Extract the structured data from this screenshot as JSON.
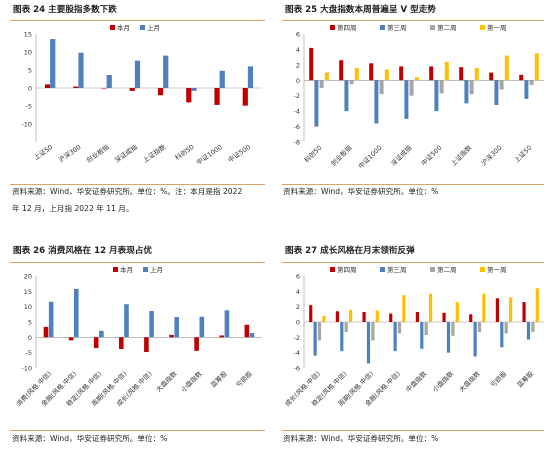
{
  "colors": {
    "red": "#c00000",
    "blue": "#4f81bd",
    "gray": "#a6a6a6",
    "yellow": "#ffc000",
    "rule": "#d9a46b"
  },
  "fig24": {
    "title": "图表 24 主要股指多数下跌",
    "source_line1": "资料来源：Wind，华安证券研究所。单位：%。注：本月是指 2022",
    "source_line2": "年 12 月，上月指 2022 年 11 月。"
  },
  "fig25": {
    "title": "图表 25 大盘指数本周普遍呈 V 型走势",
    "source": "资料来源：Wind，华安证券研究所。单位：%"
  },
  "fig26": {
    "title": "图表 26 消费风格在 12 月表现占优",
    "source": "资料来源：Wind，华安证券研究所。单位：%"
  },
  "fig27": {
    "title": "图表 27 成长风格在月末领衔反弹",
    "source": "资料来源：Wind，华安证券研究所。单位：%"
  },
  "chart_data": [
    {
      "id": "fig24",
      "type": "bar",
      "categories": [
        "上证50",
        "沪深300",
        "创业板指",
        "深证成指",
        "上证指数",
        "科创50",
        "中证1000",
        "中证500"
      ],
      "series": [
        {
          "name": "本月",
          "color": "#c00000",
          "values": [
            1.0,
            0.4,
            0.0,
            -0.8,
            -2.0,
            -4.0,
            -4.7,
            -4.9
          ]
        },
        {
          "name": "上月",
          "color": "#4f81bd",
          "values": [
            13.6,
            9.8,
            3.6,
            7.6,
            9.0,
            -0.8,
            4.8,
            6.0
          ]
        }
      ],
      "yticks": [
        -10,
        -5,
        0,
        5,
        10,
        15
      ],
      "ylim": [
        -15,
        15
      ],
      "legend": "top"
    },
    {
      "id": "fig25",
      "type": "bar",
      "categories": [
        "科创50",
        "创业板指",
        "中证1000",
        "深证成指",
        "中证500",
        "上证指数",
        "沪深300",
        "上证50"
      ],
      "series": [
        {
          "name": "第四周",
          "color": "#c00000",
          "values": [
            4.2,
            2.6,
            2.2,
            1.8,
            1.8,
            1.7,
            1.0,
            0.7
          ]
        },
        {
          "name": "第三周",
          "color": "#4f81bd",
          "values": [
            -6.0,
            -4.0,
            -5.6,
            -5.0,
            -4.0,
            -3.0,
            -3.2,
            -2.4
          ]
        },
        {
          "name": "第二周",
          "color": "#a6a6a6",
          "values": [
            -1.0,
            -0.5,
            -1.8,
            -2.0,
            -1.7,
            -1.8,
            -1.2,
            -0.6
          ]
        },
        {
          "name": "第一周",
          "color": "#ffc000",
          "values": [
            1.0,
            1.6,
            1.4,
            0.4,
            2.4,
            1.6,
            3.2,
            3.5
          ]
        }
      ],
      "yticks": [
        -8,
        -6,
        -4,
        -2,
        0,
        2,
        4,
        6
      ],
      "ylim": [
        -8,
        6
      ],
      "legend": "top"
    },
    {
      "id": "fig26",
      "type": "bar",
      "categories": [
        "消费(风格.中信)",
        "金融(风格.中信)",
        "稳定(风格.中信)",
        "周期(风格.中信)",
        "成长(风格.中信)",
        "大盘指数",
        "小盘指数",
        "蓝筹股",
        "亏损股"
      ],
      "series": [
        {
          "name": "本月",
          "color": "#c00000",
          "values": [
            3.4,
            -1.0,
            -3.5,
            -3.8,
            -4.8,
            0.8,
            -4.4,
            0.6,
            4.1
          ]
        },
        {
          "name": "上月",
          "color": "#4f81bd",
          "values": [
            11.6,
            15.8,
            2.1,
            10.8,
            8.6,
            6.6,
            6.7,
            8.8,
            1.4
          ]
        }
      ],
      "yticks": [
        -10,
        -5,
        0,
        5,
        10,
        15,
        20
      ],
      "ylim": [
        -10,
        20
      ],
      "legend": "top"
    },
    {
      "id": "fig27",
      "type": "bar",
      "categories": [
        "成长(风格.中信)",
        "稳定(风格.中信)",
        "周期(风格.中信)",
        "金融(风格.中信)",
        "中盘指数",
        "小盘指数",
        "大盘指数",
        "亏损股",
        "蓝筹股"
      ],
      "series": [
        {
          "name": "第四周",
          "color": "#c00000",
          "values": [
            2.2,
            1.4,
            1.3,
            1.1,
            1.3,
            1.2,
            1.0,
            3.1,
            2.6
          ]
        },
        {
          "name": "第三周",
          "color": "#4f81bd",
          "values": [
            -4.4,
            -3.8,
            -5.4,
            -3.8,
            -3.5,
            -4.0,
            -4.5,
            -3.3,
            -2.3
          ]
        },
        {
          "name": "第二周",
          "color": "#a6a6a6",
          "values": [
            -2.4,
            -1.3,
            -2.4,
            -1.5,
            -1.7,
            -1.8,
            -1.3,
            -1.5,
            -1.3
          ]
        },
        {
          "name": "第一周",
          "color": "#ffc000",
          "values": [
            0.8,
            1.6,
            1.5,
            3.5,
            3.7,
            2.6,
            3.7,
            3.2,
            4.4
          ]
        }
      ],
      "yticks": [
        -6,
        -4,
        -2,
        0,
        2,
        4,
        6
      ],
      "ylim": [
        -6,
        6
      ],
      "legend": "top"
    }
  ]
}
